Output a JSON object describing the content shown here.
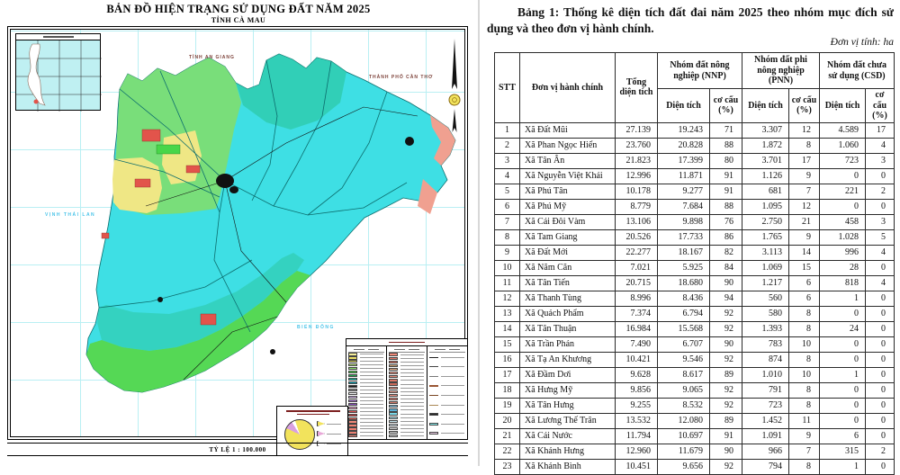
{
  "map": {
    "title": "BẢN ĐỒ HIỆN TRẠNG SỬ DỤNG ĐẤT NĂM 2025",
    "subtitle": "TỈNH CÀ MAU",
    "scale_text": "TỶ LỆ 1 : 100.000",
    "labels": {
      "north_neighbor": "TỈNH AN GIANG",
      "northeast_neighbor": "THÀNH PHỐ CẦN THƠ",
      "west_sea": "VỊNH THÁI LAN",
      "east_sea": "BIỂN ĐÔNG"
    },
    "colors": {
      "aquaculture_cyan": "#3edfe4",
      "forest_green": "#5adb5a",
      "mangrove_teal": "#2ec9a8",
      "rice_yellow": "#efe785",
      "urban_red": "#e2544b",
      "coast_pink": "#f0a090",
      "sea_label": "#49c3e8",
      "graticule": "#b9eff3"
    },
    "legend": {
      "groups": [
        {
          "name": "nhom-dat-nong-nghiep",
          "swatches": [
            "#f5ed9a",
            "#ede066",
            "#d2c84e",
            "#b5e075",
            "#8be06b",
            "#49d649",
            "#22a84f",
            "#21c0a8",
            "#12a8b8",
            "#1c1c1c",
            "#8f8f8f",
            "#efefef",
            "#d8b8ee",
            "#b07fd9",
            "#8a50bf",
            "#efa8d0",
            "#de5050",
            "#ce4040",
            "#e06858",
            "#f08878",
            "#ee8070",
            "#ec7f70",
            "#ea8072",
            "#e88074"
          ]
        },
        {
          "name": "nhom-dat-phi-nong-nghiep",
          "swatches": [
            "#f08878",
            "#e87868",
            "#da7060",
            "#cca070",
            "#e8b088",
            "#f09888",
            "#e88878",
            "#da7868",
            "#ca6858",
            "#e89888",
            "#f0a898",
            "#ee9080",
            "#e88474",
            "#d87c6c",
            "#88c8e8",
            "#5ab0d8",
            "#7ad8e8",
            "#a8e0f0",
            "#c8e8f0",
            "#e2f0f8",
            "#d8d8d8",
            "#cfcfcf",
            "#c8c8c8"
          ]
        },
        {
          "name": "ky-hieu-khac",
          "swatches_misc": [
            {
              "type": "line",
              "color": "#222222"
            },
            {
              "type": "line",
              "color": "#444444"
            },
            {
              "type": "line",
              "color": "#777777"
            },
            {
              "type": "line",
              "color": "#995533"
            },
            {
              "type": "line",
              "color": "#7a4522"
            },
            {
              "type": "line",
              "color": "#aa8855"
            },
            {
              "type": "patch",
              "color": "#2a2a2a"
            },
            {
              "type": "patch",
              "color": "#86efef"
            },
            {
              "type": "patch",
              "color": "#f0d0e8"
            }
          ]
        }
      ]
    },
    "pie": {
      "slices": [
        {
          "color": "#f2e35c",
          "value": 87
        },
        {
          "color": "#d9a0e0",
          "value": 9
        },
        {
          "color": "#ffffff",
          "value": 4
        }
      ],
      "legend_markers": [
        "#f2e35c",
        "#e8a8d8",
        "#ffffff"
      ]
    }
  },
  "table": {
    "title": "Bảng 1: Thống kê diện tích đất đai năm 2025 theo nhóm mục đích sử dụng và theo đơn vị hành chính.",
    "unit_note": "Đơn vị tính: ha",
    "headers": {
      "stt": "STT",
      "unit": "Đơn vị hành chính",
      "total": "Tổng diện tích",
      "group_nnp": "Nhóm đất nông nghiệp (NNP)",
      "group_pnn": "Nhóm đất phi nông nghiệp (PNN)",
      "group_csd": "Nhóm đất chưa sử dụng (CSD)",
      "sub_area": "Diện tích",
      "sub_share": "cơ cấu (%)"
    },
    "rows": [
      [
        "1",
        "Xã Đất Mũi",
        "27.139",
        "19.243",
        "71",
        "3.307",
        "12",
        "4.589",
        "17"
      ],
      [
        "2",
        "Xã Phan Ngọc Hiển",
        "23.760",
        "20.828",
        "88",
        "1.872",
        "8",
        "1.060",
        "4"
      ],
      [
        "3",
        "Xã Tân Ân",
        "21.823",
        "17.399",
        "80",
        "3.701",
        "17",
        "723",
        "3"
      ],
      [
        "4",
        "Xã Nguyễn Việt Khái",
        "12.996",
        "11.871",
        "91",
        "1.126",
        "9",
        "0",
        "0"
      ],
      [
        "5",
        "Xã Phú Tân",
        "10.178",
        "9.277",
        "91",
        "681",
        "7",
        "221",
        "2"
      ],
      [
        "6",
        "Xã Phú Mỹ",
        "8.779",
        "7.684",
        "88",
        "1.095",
        "12",
        "0",
        "0"
      ],
      [
        "7",
        "Xã Cái Đôi Vàm",
        "13.106",
        "9.898",
        "76",
        "2.750",
        "21",
        "458",
        "3"
      ],
      [
        "8",
        "Xã Tam Giang",
        "20.526",
        "17.733",
        "86",
        "1.765",
        "9",
        "1.028",
        "5"
      ],
      [
        "9",
        "Xã Đất Mới",
        "22.277",
        "18.167",
        "82",
        "3.113",
        "14",
        "996",
        "4"
      ],
      [
        "10",
        "Xã Năm Căn",
        "7.021",
        "5.925",
        "84",
        "1.069",
        "15",
        "28",
        "0"
      ],
      [
        "11",
        "Xã Tân Tiến",
        "20.715",
        "18.680",
        "90",
        "1.217",
        "6",
        "818",
        "4"
      ],
      [
        "12",
        "Xã Thanh Tùng",
        "8.996",
        "8.436",
        "94",
        "560",
        "6",
        "1",
        "0"
      ],
      [
        "13",
        "Xã Quách Phẩm",
        "7.374",
        "6.794",
        "92",
        "580",
        "8",
        "0",
        "0"
      ],
      [
        "14",
        "Xã Tân Thuận",
        "16.984",
        "15.568",
        "92",
        "1.393",
        "8",
        "24",
        "0"
      ],
      [
        "15",
        "Xã Trần Phán",
        "7.490",
        "6.707",
        "90",
        "783",
        "10",
        "0",
        "0"
      ],
      [
        "16",
        "Xã Tạ An Khương",
        "10.421",
        "9.546",
        "92",
        "874",
        "8",
        "0",
        "0"
      ],
      [
        "17",
        "Xã Đầm Dơi",
        "9.628",
        "8.617",
        "89",
        "1.010",
        "10",
        "1",
        "0"
      ],
      [
        "18",
        "Xã Hưng Mỹ",
        "9.856",
        "9.065",
        "92",
        "791",
        "8",
        "0",
        "0"
      ],
      [
        "19",
        "Xã Tân Hưng",
        "9.255",
        "8.532",
        "92",
        "723",
        "8",
        "0",
        "0"
      ],
      [
        "20",
        "Xã Lương Thế Trân",
        "13.532",
        "12.080",
        "89",
        "1.452",
        "11",
        "0",
        "0"
      ],
      [
        "21",
        "Xã Cái Nước",
        "11.794",
        "10.697",
        "91",
        "1.091",
        "9",
        "6",
        "0"
      ],
      [
        "22",
        "Xã Khánh Hưng",
        "12.960",
        "11.679",
        "90",
        "966",
        "7",
        "315",
        "2"
      ],
      [
        "23",
        "Xã Khánh Bình",
        "10.451",
        "9.656",
        "92",
        "794",
        "8",
        "1",
        "0"
      ]
    ]
  }
}
